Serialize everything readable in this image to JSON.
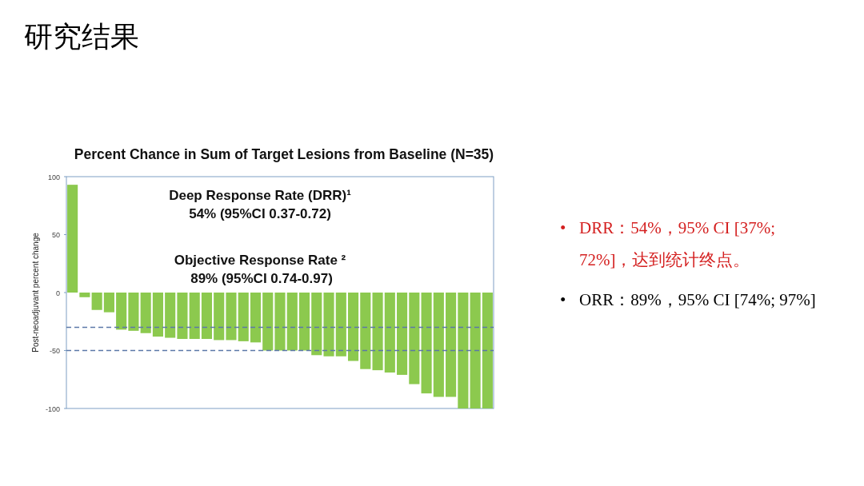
{
  "chart_data": {
    "type": "bar",
    "title": "研究结果",
    "subtitle": "Percent Chance in Sum of Target Lesions from Baseline (N=35)",
    "ylabel": "Post-neoadjuvant  percent change",
    "categories": [
      null,
      null,
      null,
      null,
      null,
      null,
      null,
      null,
      null,
      null,
      null,
      null,
      null,
      null,
      null,
      null,
      null,
      null,
      null,
      null,
      null,
      null,
      null,
      null,
      null,
      null,
      null,
      null,
      null,
      null,
      null,
      null,
      null,
      null,
      null
    ],
    "values": [
      93,
      -4,
      -15,
      -17,
      -32,
      -33,
      -35,
      -38,
      -39,
      -40,
      -40,
      -40,
      -41,
      -41,
      -42,
      -43,
      -50,
      -50,
      -50,
      -50,
      -54,
      -55,
      -55,
      -59,
      -66,
      -67,
      -69,
      -71,
      -79,
      -87,
      -90,
      -90,
      -100,
      -100,
      -100
    ],
    "color": "#8cc94e",
    "ylim": [
      -100,
      100
    ],
    "yticks": [
      -100,
      -50,
      0,
      50,
      100
    ],
    "grid": false,
    "ref_lines": [
      {
        "axis": "y",
        "value": -30,
        "color": "#5b78a8",
        "line_style": "dashed"
      },
      {
        "axis": "y",
        "value": -50,
        "color": "#5b78a8",
        "line_style": "dashed"
      }
    ],
    "annotations": [
      "Deep Response Rate (DRR)¹",
      "54% (95%CI 0.37-0.72)",
      "Objective Response Rate ²",
      "89% (95%CI 0.74-0.97)",
      "•\tDRR：54%，95% CI [37%; 72%]，达到统计终点。",
      "•\tORR：89%，95% CI [74%; 97%]"
    ]
  }
}
